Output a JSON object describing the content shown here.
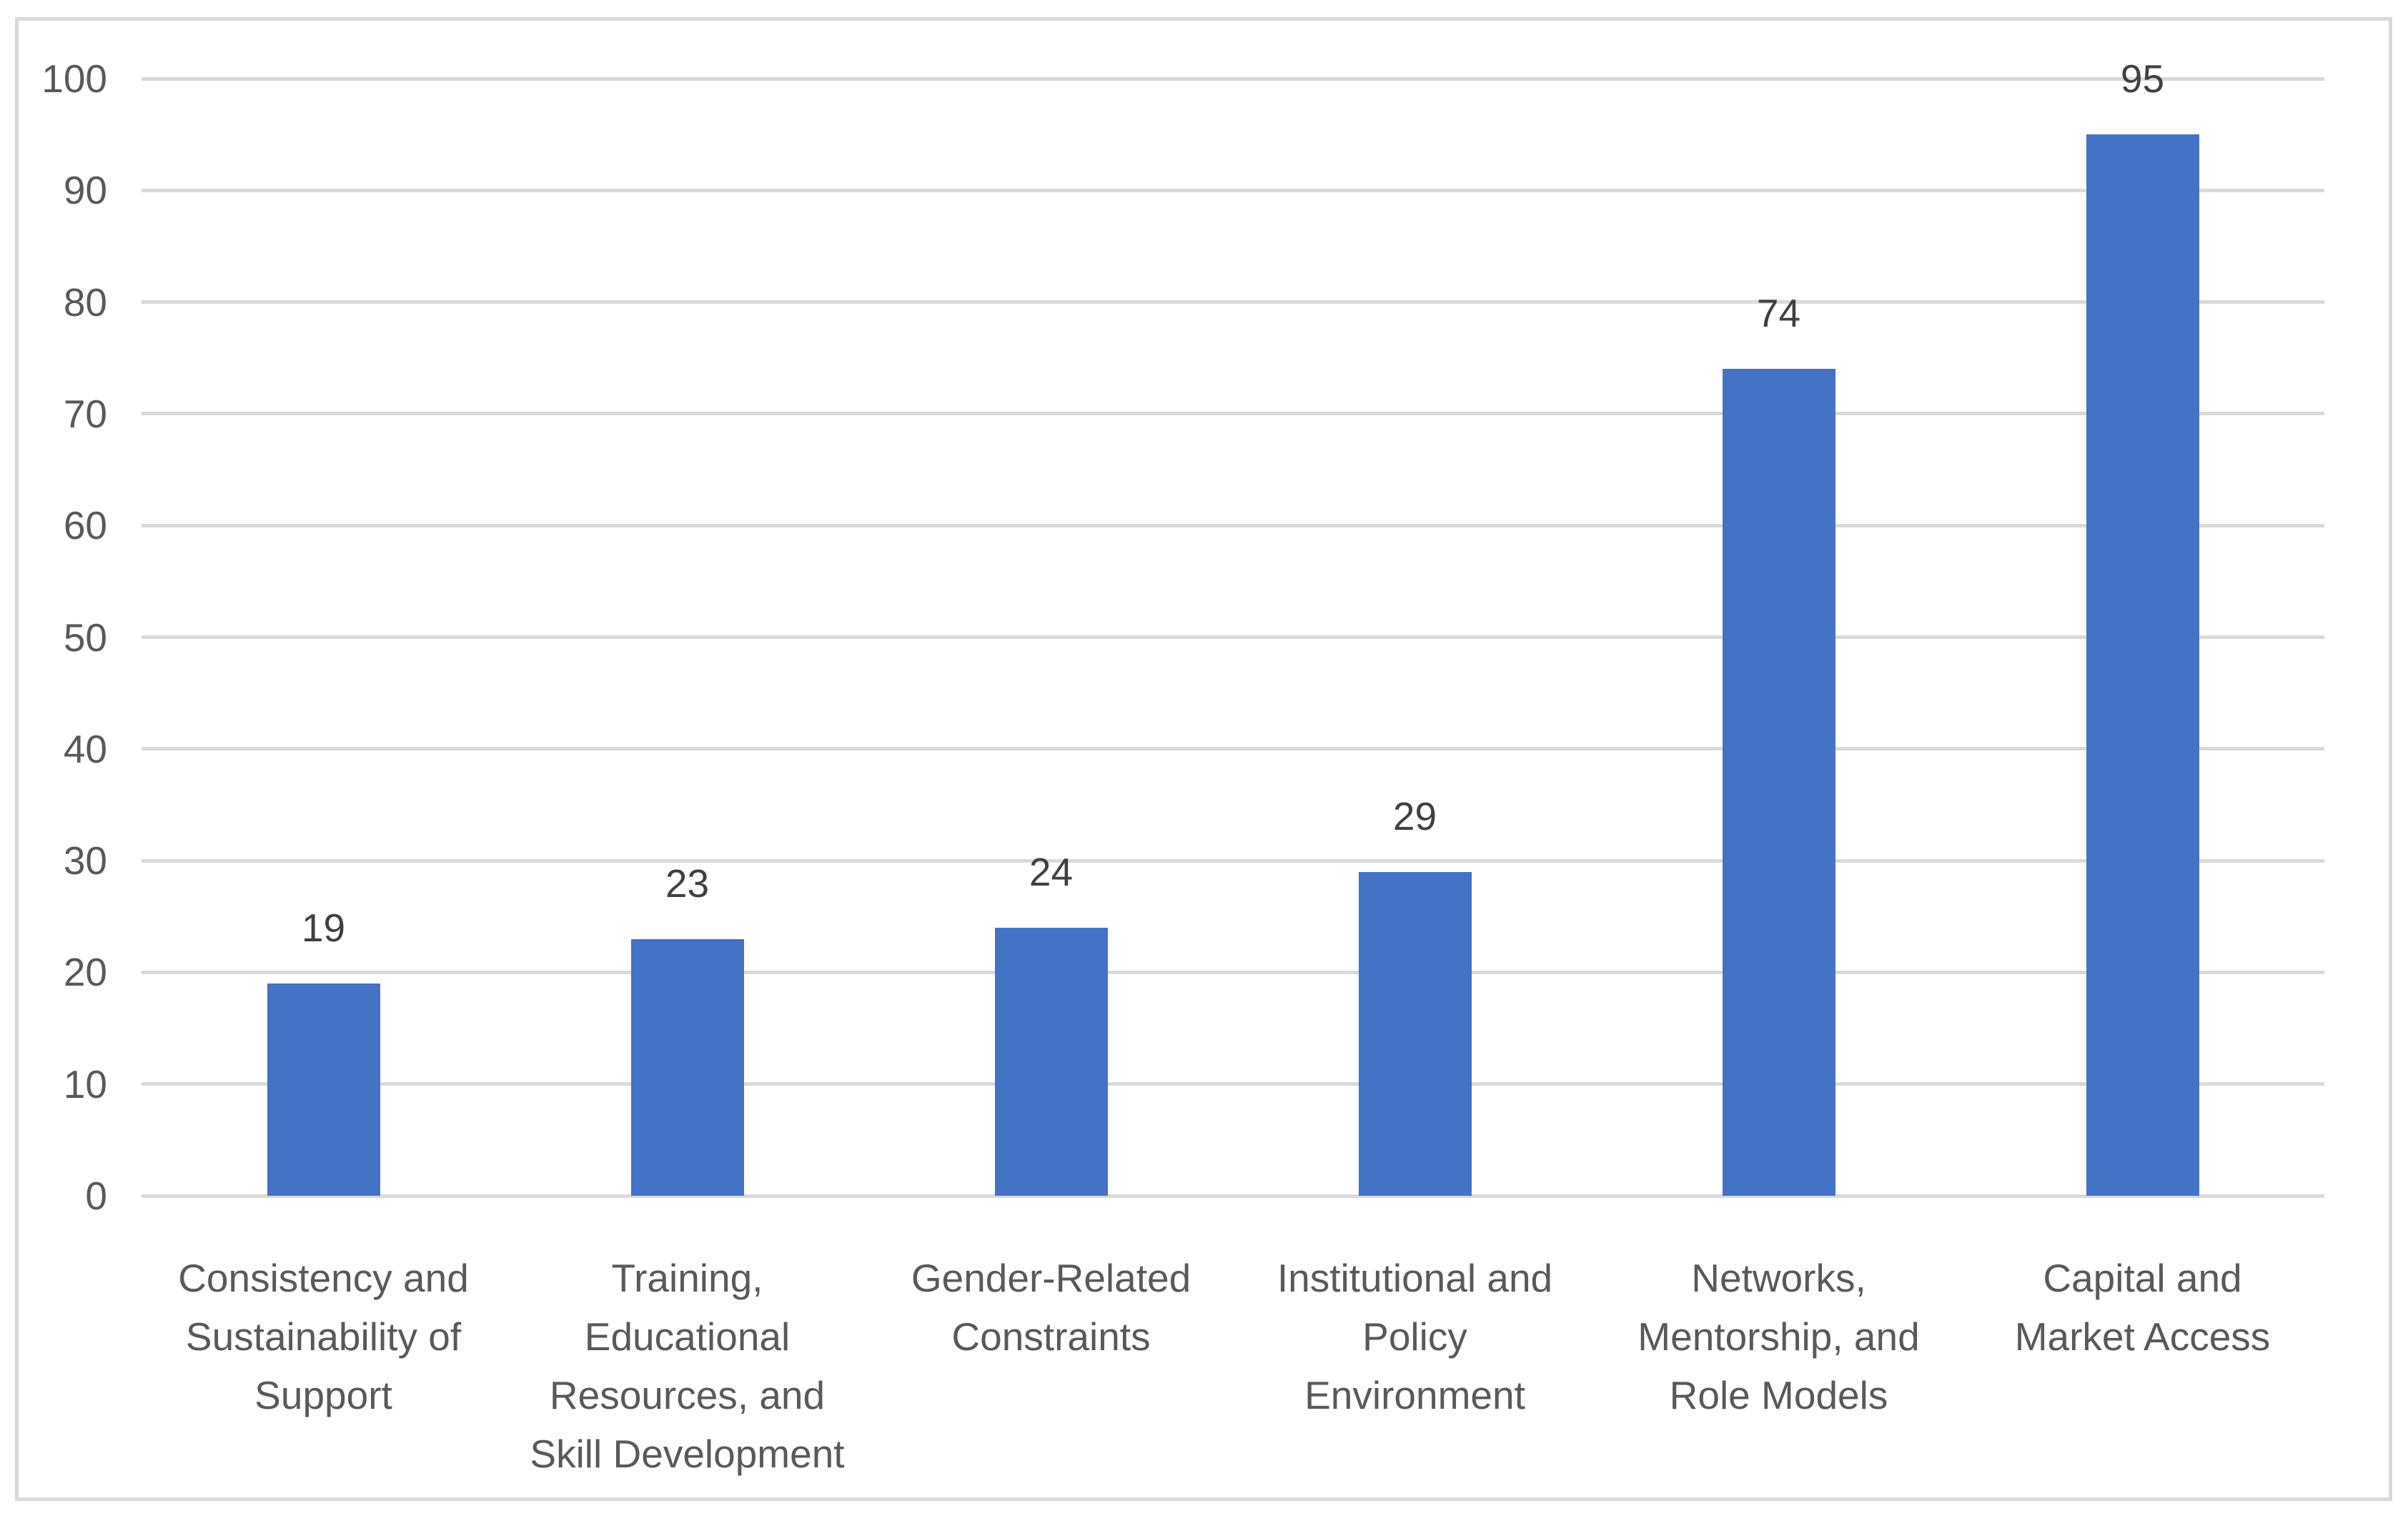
{
  "chart_data": {
    "type": "bar",
    "title": "",
    "xlabel": "",
    "ylabel": "",
    "categories": [
      "Consistency and Sustainability of Support",
      "Training, Educational Resources, and Skill Development",
      "Gender-Related Constraints",
      "Institutional and Policy Environment",
      "Networks, Mentorship, and Role Models",
      "Capital and Market Access"
    ],
    "category_label_lines": [
      [
        "Consistency and",
        "Sustainability of",
        "Support"
      ],
      [
        "Training,",
        "Educational",
        "Resources, and",
        "Skill Development"
      ],
      [
        "Gender-Related",
        "Constraints"
      ],
      [
        "Institutional and",
        "Policy",
        "Environment"
      ],
      [
        "Networks,",
        "Mentorship, and",
        "Role Models"
      ],
      [
        "Capital and",
        "Market Access"
      ]
    ],
    "values": [
      19,
      23,
      24,
      29,
      74,
      95
    ],
    "data_labels": [
      "19",
      "23",
      "24",
      "29",
      "74",
      "95"
    ],
    "ylim": [
      0,
      100
    ],
    "yticks": [
      0,
      10,
      20,
      30,
      40,
      50,
      60,
      70,
      80,
      90,
      100
    ],
    "grid": true,
    "legend": false,
    "colors": {
      "bar": "#4472C4",
      "gridline": "#D9D9D9",
      "frame_border": "#D9D9D9",
      "axis_tick_label": "#595959",
      "category_label": "#595959",
      "data_label": "#404040",
      "background": "#FFFFFF"
    }
  }
}
